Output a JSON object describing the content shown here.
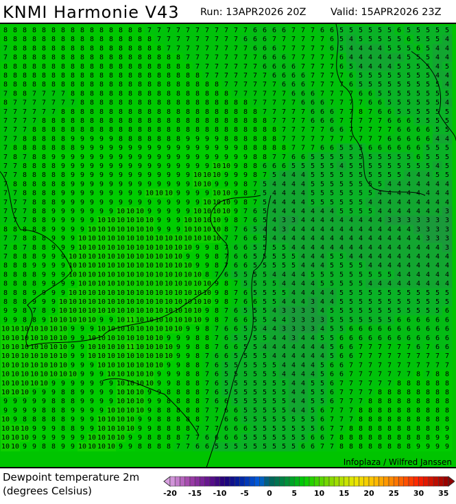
{
  "header": {
    "title": "KNMI Harmonie V43",
    "run": "Run: 13APR2026 20Z",
    "valid": "Valid: 15APR2026 23Z"
  },
  "map": {
    "credit": "Infoplaza / Wilfred Janssen",
    "values": [
      "8 8 8 8 8 8 8 8 8 8 8 8 8 8 8 7 7 7 7 7 7 7 7 7 7 7 6 6 6 6 7 7 7 6 6 5 5 5 5 5 5 6 5 5 5 5 5",
      "8 8 8 8 8 8 8 8 8 8 8 8 8 8 8 8 7 7 7 7 7 7 7 7 7 6 6 6 7 7 7 7 7 7 6 5 4 5 5 5 5 5 6 5 5 5 4",
      "7 8 8 8 8 8 8 8 8 8 8 8 8 8 8 8 8 7 7 7 7 7 7 7 7 7 6 6 6 7 7 7 7 7 6 5 4 4 4 4 5 5 5 6 5 4 4",
      "7 8 8 8 8 8 8 8 8 8 8 8 8 8 8 8 8 8 8 7 7 7 7 7 7 7 7 6 6 6 7 7 7 7 7 6 4 4 4 4 4 4 5 5 5 4 4",
      "8 8 8 8 8 8 8 8 8 8 8 8 8 8 8 8 8 8 8 8 7 7 7 7 7 7 7 6 6 6 6 7 7 7 7 6 5 4 4 4 4 5 5 5 5 4 5",
      "8 8 8 8 8 8 8 8 8 8 8 8 8 8 8 8 8 8 8 8 8 7 7 7 7 7 7 7 6 6 6 6 7 7 7 7 6 5 5 5 5 5 5 5 5 4 4",
      "8 8 8 8 8 8 8 8 8 8 8 8 8 8 8 8 8 8 8 8 8 8 8 7 7 7 7 7 7 6 6 6 7 7 7 7 6 5 5 5 5 5 5 5 5 5 4",
      "7 8 8 7 7 7 7 8 8 8 8 8 8 8 8 8 8 8 8 8 8 8 8 8 7 7 7 7 7 7 6 6 6 7 7 7 7 6 6 5 5 5 5 5 5 5 5",
      "8 7 7 7 7 7 7 7 8 8 8 8 8 8 8 8 8 8 8 8 8 8 8 8 8 8 7 7 7 7 7 6 6 6 7 7 7 7 6 6 5 5 5 5 5 5 4",
      "7 7 7 7 7 7 8 8 8 8 8 8 8 8 8 8 8 8 8 8 8 8 8 8 8 8 8 7 7 7 7 7 6 6 6 7 7 8 7 6 6 5 5 5 5 5 5",
      "7 7 7 7 8 8 8 8 8 8 8 8 8 8 8 8 8 8 8 8 8 8 8 8 8 8 8 8 7 7 7 7 6 6 6 7 7 7 7 7 6 6 6 5 5 5 5",
      "7 7 7 8 8 8 8 8 8 8 8 8 8 8 8 8 8 8 8 8 8 8 8 8 8 8 8 8 8 7 7 7 7 7 6 6 7 7 7 7 7 6 6 6 6 5 5",
      "7 7 8 8 8 8 8 9 9 9 9 9 8 8 8 8 8 8 8 9 9 9 9 8 8 8 8 8 8 7 7 7 7 7 7 7 7 7 7 7 6 6 6 6 6 4 4",
      "7 8 8 8 8 8 8 8 9 9 9 9 9 9 9 9 9 9 9 9 9 9 9 9 9 8 8 8 8 8 7 7 7 6 6 5 5 5 6 6 6 6 6 6 5 5 5",
      "7 8 7 8 8 9 9 9 9 9 9 9 9 9 9 9 9 9 9 9 9 9 9 9 9 9 8 8 7 7 6 6 5 5 5 5 5 5 5 5 5 5 5 6 5 5 5",
      "7 7 8 8 8 8 9 9 9 9 9 9 9 9 9 9 9 9 9 9 9 9 10 10 9 8 8 6 6 6 5 5 5 5 5 4 5 5 5 5 5 5 5 5 5 4 5",
      "7 7 8 8 8 8 8 9 9 9 9 9 9 9 9 9 9 9 9 9 10 10 10 9 9 9 8 7 5 4 4 4 5 5 5 5 5 5 5 5 5 5 4 4 4 5 5",
      "7 8 8 8 8 8 8 9 9 9 9 9 9 9 9 9 9 9 9 9 10 10 9 9 9 8 7 5 4 4 4 4 5 5 5 5 5 5 5 5 4 4 4 4 4 4 4",
      "7 7 8 8 8 8 9 9 9 9 9 9 9 9 9 10 10 10 9 9 9 9 10 10 9 8 7 5 4 4 4 4 5 5 5 5 5 5 5 4 4 4 4 4 4 4 4",
      "7 7 7 8 8 8 9 9 9 9 9 9 9 9 9 9 9 9 9 9 9 10 10 10 9 8 7 5 4 4 4 4 5 5 5 5 5 5 4 4 4 4 4 4 4 4 4",
      "7 7 7 8 8 9 9 9 9 9 9 9 10 10 10 9 9 9 9 9 10 10 10 10 9 7 6 5 4 4 4 4 4 4 4 5 5 5 5 4 4 4 4 4 4 4 3",
      "7 7 7 8 8 9 9 9 9 9 10 10 10 10 10 10 9 9 9 10 10 10 10 9 8 7 6 5 4 3 3 4 4 4 4 4 4 4 4 4 3 3 3 3 3 3 3",
      "8 8 8 8 8 9 9 9 9 10 10 10 10 10 10 10 9 9 9 10 10 10 10 8 7 6 5 4 4 3 4 4 4 4 4 4 4 4 4 4 4 4 4 3 3 3 3",
      "7 7 8 8 8 9 9 9 10 10 10 10 10 10 10 10 10 10 10 10 10 10 10 7 7 6 6 5 4 4 4 4 4 4 4 4 4 4 4 4 4 4 4 4 3 3 3",
      "7 8 7 8 8 9 9 9 10 10 10 10 10 10 10 10 10 10 10 10 9 9 8 7 6 6 5 5 5 5 4 4 4 4 4 4 4 4 4 4 4 4 4 4 4 4 3",
      "7 8 8 8 9 9 9 10 10 10 10 10 10 10 10 10 10 10 10 9 9 9 8 7 6 6 5 5 5 5 5 4 4 4 5 5 4 4 4 4 4 4 4 4 4 4 4",
      "8 8 8 9 9 9 9 10 10 10 10 10 10 10 10 10 10 10 10 10 9 9 8 7 6 6 5 5 5 5 5 4 4 4 5 5 5 5 4 4 4 4 4 4 4 4 4",
      "8 8 8 8 9 9 9 10 10 10 10 10 10 10 10 10 10 10 10 10 10 8 7 6 5 5 5 5 4 4 4 4 5 5 5 5 5 5 5 5 5 4 4 4 4 4 4",
      "8 8 8 8 9 9 9 9 10 10 10 10 10 10 10 10 10 10 10 10 10 10 9 8 7 5 5 5 5 4 4 4 4 5 5 5 5 5 4 4 4 4 4 4 4 4 4",
      "8 8 8 9 9 9 9 10 10 10 10 10 10 10 10 10 10 10 10 10 10 10 9 8 7 6 5 5 5 5 4 4 4 4 4 5 5 5 5 5 5 5 5 5 5 5 5",
      "8 8 8 9 9 9 10 10 10 10 10 10 10 10 10 10 10 10 10 10 10 10 9 8 7 6 6 5 5 4 4 4 3 4 4 5 5 5 5 5 5 5 5 5 5 5 5",
      "9 9 8 7 8 9 10 10 10 10 10 10 10 10 10 10 10 10 10 10 10 9 8 7 6 5 5 5 4 3 3 3 3 4 5 5 5 5 5 5 5 5 5 5 5 5 6",
      "9 9 8 8 9 10 10 10 10 10 9 9 10 11 10 10 10 10 10 10 10 9 8 7 6 6 5 5 4 4 3 3 3 3 5 5 5 5 5 5 5 6 6 6 6 6 6",
      "10 10 10 10 10 10 10 9 9 9 10 10 10 10 10 10 10 10 10 9 9 8 7 6 6 5 5 4 4 3 3 3 3 4 5 5 6 6 6 6 6 6 6 6 6 6 6",
      "10 10 10 10 10 10 10 9 9 10 10 10 10 10 10 10 10 9 9 9 8 8 7 6 5 5 5 5 4 4 3 4 4 5 5 6 6 6 6 6 6 6 6 6 6 6 6",
      "10 10 10 10 10 10 10 9 9 10 10 10 10 11 10 10 10 10 9 9 8 8 7 6 6 5 5 4 4 4 4 4 4 4 5 6 6 7 7 7 7 7 7 6 7 6 6",
      "10 10 10 10 10 10 10 9 9 10 10 10 10 10 10 10 10 10 9 9 8 7 6 6 5 5 5 5 4 4 4 4 4 4 5 6 6 7 7 7 7 7 7 7 7 7 7",
      "10 10 10 10 10 10 10 9 9 9 10 10 10 10 10 10 10 9 9 8 8 7 6 5 5 5 5 5 5 4 4 4 4 5 6 6 7 7 7 7 7 7 7 7 7 7 7",
      "10 10 10 10 10 10 10 10 9 9 9 10 10 10 10 10 9 9 9 8 8 7 6 5 5 5 5 5 5 4 4 4 4 5 6 6 7 7 7 7 7 7 7 8 7 8 8",
      "10 10 10 10 10 9 9 9 9 9 9 9 10 10 10 10 9 9 8 8 8 7 6 5 5 5 5 5 5 5 4 4 5 5 6 7 7 7 7 7 7 8 8 8 8 8 8",
      "10 10 10 9 9 9 8 8 9 9 9 9 10 10 10 9 9 8 8 8 8 7 6 5 5 5 5 5 5 5 4 4 5 5 6 7 7 7 7 8 8 8 8 8 8 8 8",
      "9 9 9 9 9 8 8 8 9 9 9 9 10 10 10 9 9 8 8 8 8 7 6 6 5 5 5 5 5 5 4 4 5 5 6 7 7 7 8 8 8 8 8 8 8 8 8",
      "9 9 9 9 8 8 8 9 9 9 9 10 10 10 10 9 8 8 8 8 8 7 7 6 6 5 5 5 5 5 4 4 5 6 7 7 7 8 8 8 8 8 8 8 8 8 8",
      "10 9 8 8 8 8 8 9 9 9 10 10 10 10 9 9 8 8 8 8 8 7 7 6 6 5 5 5 5 5 5 5 5 6 7 7 7 8 8 8 8 8 8 8 8 8 8",
      "10 10 10 9 9 9 8 8 9 9 10 10 10 10 9 9 8 8 8 8 7 7 7 6 6 6 5 5 5 5 5 5 5 6 7 7 8 8 8 8 8 8 8 8 8 8 9",
      "10 10 10 9 9 9 9 9 9 10 10 10 10 9 9 8 8 8 8 7 7 6 6 6 6 5 5 5 5 5 5 5 6 6 7 8 8 8 8 8 8 8 8 8 8 9 9",
      "10 10 9 9 8 8 9 9 10 10 10 10 9 9 8 8 8 8 7 7 6 6 5 5 5 5 5 5 5 5 5 6 6 7 7 8 8 8 8 8 8 8 8 9 9 9 9"
    ],
    "shade_colors": {
      "3": "#1a9a3a",
      "4": "#12a630",
      "5": "#0ab226",
      "6": "#04bc14",
      "7": "#00c20a",
      "8": "#00c800",
      "9": "#00cc00",
      "10": "#10d000",
      "11": "#20d400"
    }
  },
  "legend": {
    "title_line1": "Dewpoint temperature 2m",
    "title_line2": "(degrees Celsius)",
    "ticks": [
      "-20",
      "-15",
      "-10",
      "-5",
      "0",
      "5",
      "10",
      "15",
      "20",
      "25",
      "30",
      "35"
    ],
    "range": [
      -20,
      36
    ],
    "color_stops": [
      {
        "v": -20,
        "c": "#d8a0e0"
      },
      {
        "v": -16,
        "c": "#a040a8"
      },
      {
        "v": -12,
        "c": "#60108c"
      },
      {
        "v": -9,
        "c": "#200078"
      },
      {
        "v": -6,
        "c": "#0020a0"
      },
      {
        "v": -2,
        "c": "#0060e0"
      },
      {
        "v": 0,
        "c": "#006060"
      },
      {
        "v": 3,
        "c": "#008840"
      },
      {
        "v": 7,
        "c": "#00d000"
      },
      {
        "v": 12,
        "c": "#80d800"
      },
      {
        "v": 17,
        "c": "#e8e800"
      },
      {
        "v": 21,
        "c": "#ffc000"
      },
      {
        "v": 25,
        "c": "#ff8000"
      },
      {
        "v": 30,
        "c": "#ff2000"
      },
      {
        "v": 36,
        "c": "#900000"
      }
    ]
  }
}
